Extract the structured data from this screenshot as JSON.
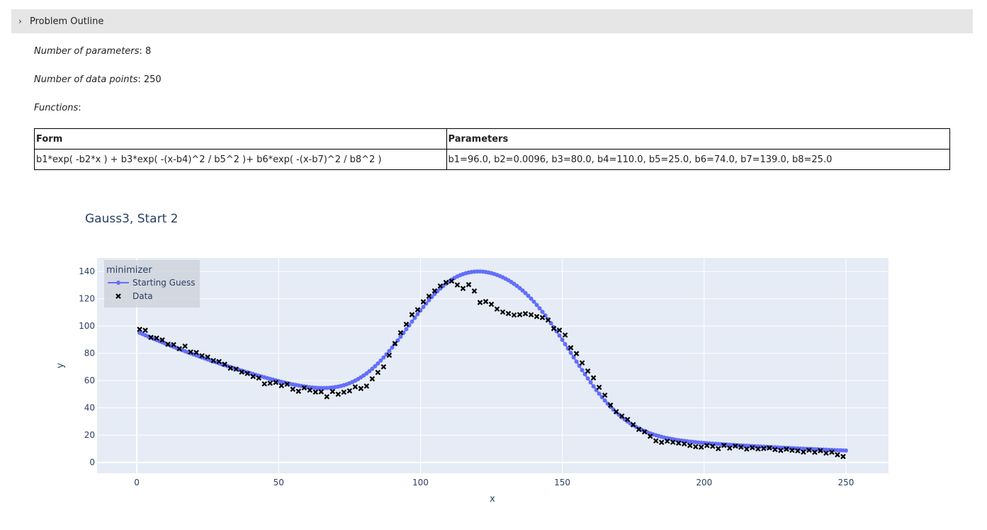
{
  "outline": {
    "title": "Problem Outline"
  },
  "info": {
    "num_params_label": "Number of parameters",
    "num_params_value": "8",
    "num_points_label": "Number of data points",
    "num_points_value": "250",
    "functions_label": "Functions"
  },
  "table": {
    "headers": [
      "Form",
      "Parameters"
    ],
    "rows": [
      [
        "b1*exp( -b2*x ) + b3*exp( -(x-b4)^2 / b5^2 )+ b6*exp( -(x-b7)^2 / b8^2 )",
        "b1=96.0, b2=0.0096, b3=80.0, b4=110.0, b5=25.0, b6=74.0, b7=139.0, b8=25.0"
      ]
    ]
  },
  "chart_data": {
    "type": "scatter",
    "title": "Gauss3, Start 2",
    "xlabel": "x",
    "ylabel": "y",
    "xlim": [
      -14,
      265
    ],
    "ylim": [
      -8,
      150
    ],
    "xticks": [
      0,
      50,
      100,
      150,
      200,
      250
    ],
    "yticks": [
      0,
      20,
      40,
      60,
      80,
      100,
      120,
      140
    ],
    "grid": true,
    "legend": {
      "title": "minimizer",
      "position": "top-left",
      "entries": [
        "Starting Guess",
        "Data"
      ]
    },
    "series": [
      {
        "name": "Starting Guess",
        "mode": "lines+markers",
        "color": "#636efa",
        "model": "b1*exp(-b2*x) + b3*exp(-(x-b4)^2/b5^2) + b6*exp(-(x-b7)^2/b8^2)",
        "params": [
          96.0,
          0.0096,
          80.0,
          110.0,
          25.0,
          74.0,
          139.0,
          25.0
        ],
        "x_range": [
          1,
          250
        ]
      },
      {
        "name": "Data",
        "mode": "markers",
        "marker": "x",
        "color": "#000000",
        "x": [
          1,
          3,
          5,
          7,
          9,
          11,
          13,
          15,
          17,
          19,
          21,
          23,
          25,
          27,
          29,
          31,
          33,
          35,
          37,
          39,
          41,
          43,
          45,
          47,
          49,
          51,
          53,
          55,
          57,
          59,
          61,
          63,
          65,
          67,
          69,
          71,
          73,
          75,
          77,
          79,
          81,
          83,
          85,
          87,
          89,
          91,
          93,
          95,
          97,
          99,
          101,
          103,
          105,
          107,
          109,
          111,
          113,
          115,
          117,
          119,
          121,
          123,
          125,
          127,
          129,
          131,
          133,
          135,
          137,
          139,
          141,
          143,
          145,
          147,
          149,
          151,
          153,
          155,
          157,
          159,
          161,
          163,
          165,
          167,
          169,
          171,
          173,
          175,
          177,
          179,
          181,
          183,
          185,
          187,
          189,
          191,
          193,
          195,
          197,
          199,
          201,
          203,
          205,
          207,
          209,
          211,
          213,
          215,
          217,
          219,
          221,
          223,
          225,
          227,
          229,
          231,
          233,
          235,
          237,
          239,
          241,
          243,
          245,
          247,
          249
        ],
        "y": [
          97.6,
          96.9,
          91.7,
          91.2,
          89.8,
          86.7,
          86.4,
          83.4,
          85.3,
          81.0,
          80.6,
          78.2,
          77.3,
          74.7,
          74.0,
          72.0,
          69.1,
          68.4,
          66.3,
          65.2,
          63.0,
          61.9,
          57.6,
          58.1,
          58.7,
          56.3,
          57.4,
          53.7,
          52.2,
          54.7,
          53.0,
          51.6,
          51.8,
          48.2,
          52.0,
          50.0,
          51.5,
          52.5,
          55.4,
          54.2,
          56.0,
          61.3,
          66.0,
          70.1,
          78.6,
          87.2,
          95.1,
          101.3,
          108.4,
          112.0,
          117.8,
          121.9,
          125.8,
          129.4,
          132.0,
          133.0,
          130.2,
          127.6,
          130.4,
          125.7,
          117.3,
          118.0,
          116.0,
          112.5,
          110.3,
          109.2,
          108.1,
          108.4,
          109.1,
          108.3,
          107.0,
          106.2,
          104.4,
          98.2,
          97.0,
          93.4,
          84.1,
          79.8,
          73.0,
          67.0,
          62.0,
          55.1,
          49.3,
          42.0,
          37.2,
          34.0,
          31.5,
          27.7,
          24.2,
          22.4,
          19.2,
          15.8,
          14.7,
          15.6,
          14.8,
          14.2,
          13.6,
          12.4,
          11.5,
          11.2,
          12.4,
          11.8,
          10.1,
          12.5,
          10.5,
          12.0,
          11.2,
          9.8,
          10.8,
          9.9,
          10.2,
          10.6,
          9.4,
          8.8,
          9.7,
          8.9,
          8.5,
          7.6,
          9.0,
          7.4,
          8.6,
          6.8,
          7.5,
          5.6,
          4.3
        ]
      }
    ]
  }
}
